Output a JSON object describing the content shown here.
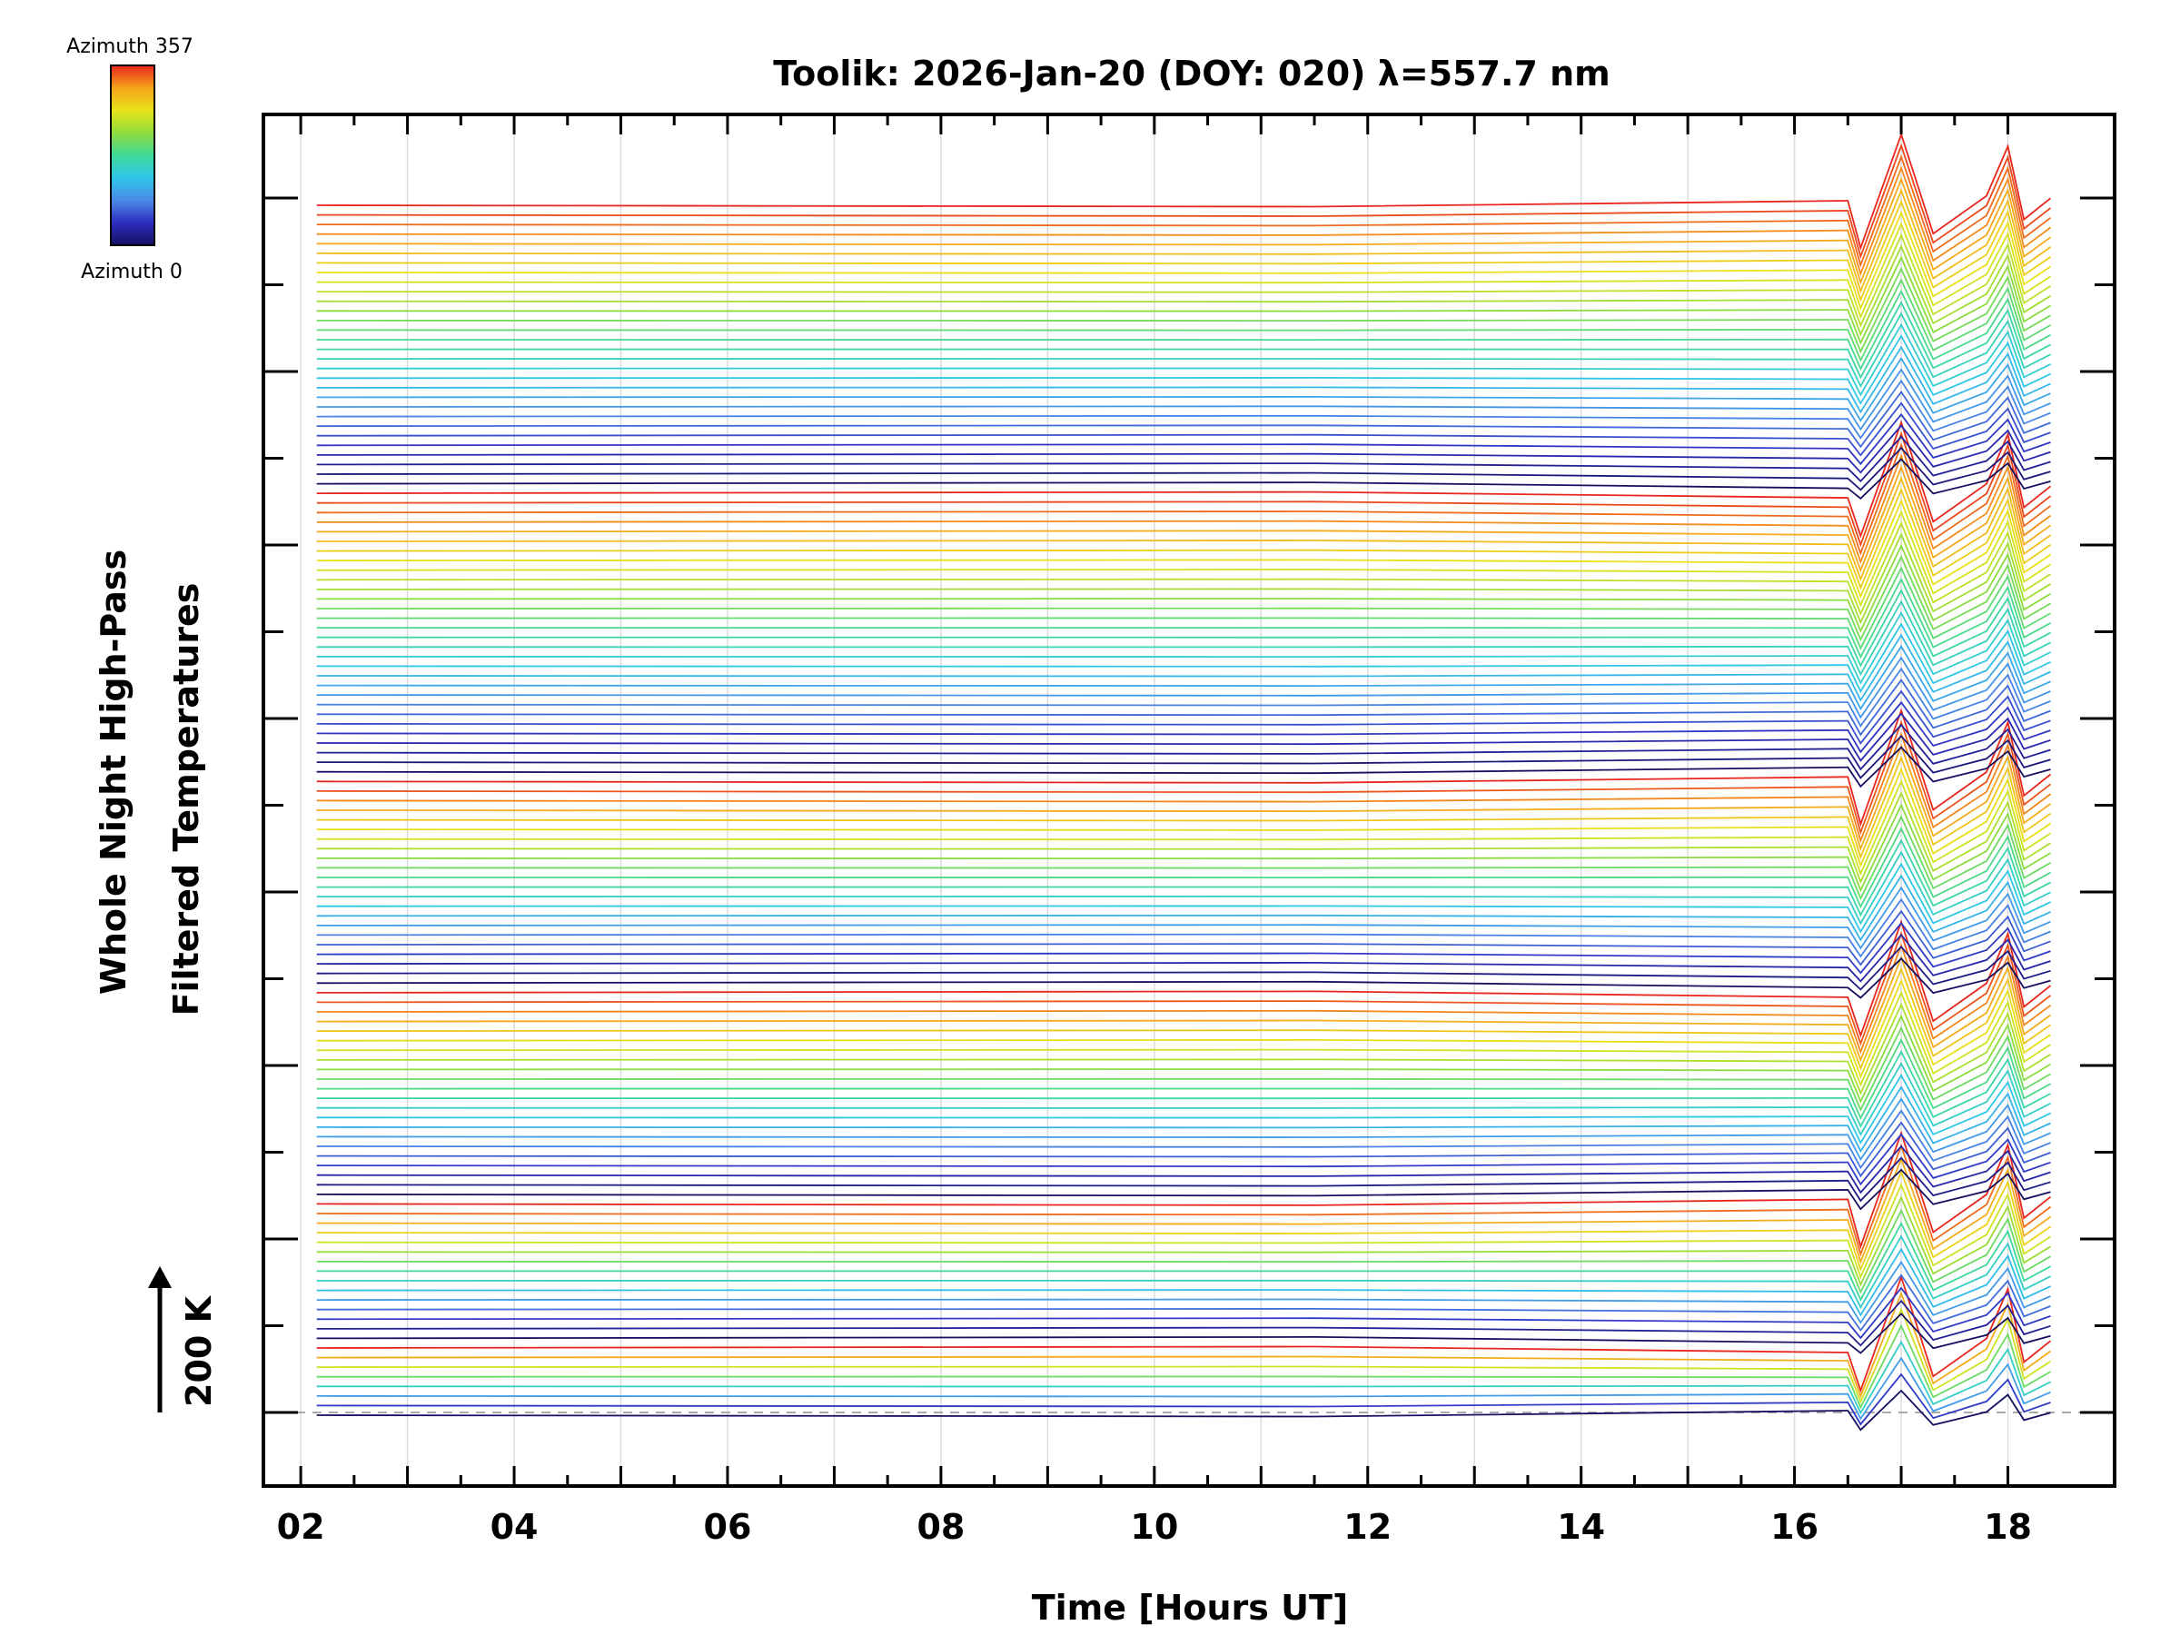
{
  "chart_data": {
    "type": "line",
    "title": "Toolik: 2026-Jan-20 (DOY: 020) λ=557.7 nm",
    "xlabel": "Time [Hours UT]",
    "ylabel_line1": "Whole Night High-Pass",
    "ylabel_line2": "Filtered Temperatures",
    "scale_label": "200 K",
    "colorbar": {
      "top_label": "Azimuth 357",
      "bottom_label": "Azimuth 0",
      "colors": [
        "#e7261e",
        "#f5a31b",
        "#e8e419",
        "#8fdc3c",
        "#3fd89a",
        "#2ec6e8",
        "#4a8ae8",
        "#2d2dbf",
        "#151060"
      ]
    },
    "xlim": [
      1.65,
      19.0
    ],
    "xticks": [
      {
        "value": 2,
        "label": "02"
      },
      {
        "value": 4,
        "label": "04"
      },
      {
        "value": 6,
        "label": "06"
      },
      {
        "value": 8,
        "label": "08"
      },
      {
        "value": 10,
        "label": "10"
      },
      {
        "value": 12,
        "label": "12"
      },
      {
        "value": 14,
        "label": "14"
      },
      {
        "value": 16,
        "label": "16"
      },
      {
        "value": 18,
        "label": "18"
      }
    ],
    "series_groups": [
      {
        "name": "group-1",
        "series_count": 8,
        "color_order": "red-to-dark",
        "event_peak_hours": [
          17.0,
          18.0
        ]
      },
      {
        "name": "group-2",
        "series_count": 15,
        "color_order": "red-to-dark",
        "event_peak_hours": [
          17.0,
          18.0
        ]
      },
      {
        "name": "group-3",
        "series_count": 22,
        "color_order": "red-to-dark",
        "event_peak_hours": [
          17.0,
          18.0
        ]
      },
      {
        "name": "group-4",
        "series_count": 22,
        "color_order": "red-to-dark",
        "event_peak_hours": [
          17.0,
          18.0
        ]
      },
      {
        "name": "group-5",
        "series_count": 30,
        "color_order": "red-to-dark",
        "event_peak_hours": [
          17.0,
          18.0
        ]
      },
      {
        "name": "group-6",
        "series_count": 30,
        "color_order": "red-to-dark",
        "event_peak_hours": [
          17.0,
          18.0
        ]
      }
    ],
    "time_start": 2.15,
    "time_end": 18.4,
    "event_start": 16.5,
    "grid": true,
    "baseline_dashed": true
  }
}
